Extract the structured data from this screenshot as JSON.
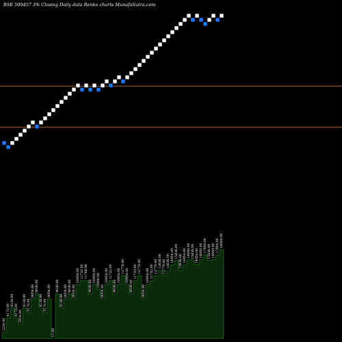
{
  "chart_data": {
    "type": "renko",
    "title": "BSE 500457 3% Closing Daily data Renko charts MunafaSutra.com",
    "bricks": [
      "down",
      "down",
      "up",
      "up",
      "up",
      "up",
      "up",
      "up",
      "down",
      "up",
      "up",
      "up",
      "up",
      "up",
      "up",
      "up",
      "up",
      "up",
      "up",
      "down",
      "up",
      "down",
      "up",
      "down",
      "up",
      "up",
      "down",
      "up",
      "up",
      "down",
      "up",
      "up",
      "up",
      "up",
      "up",
      "up",
      "up",
      "up",
      "up",
      "up",
      "up",
      "up",
      "up",
      "up",
      "up",
      "up",
      "down",
      "up",
      "down",
      "down",
      "up",
      "up",
      "down",
      "up"
    ],
    "colors": {
      "up_brick": "#ffffff",
      "down_brick": "#1e78ff",
      "reference_line": "#b4642a",
      "volume_fill": "#0b2a0b",
      "volume_edge": "#1f6f1f",
      "background": "#000000"
    },
    "reference_lines": [
      "level-1",
      "level-2"
    ],
    "volume_labels": [
      "1234.00",
      "4173.00",
      "6138.00",
      "4173.00",
      "2916.00",
      "6138.00",
      "5178.00",
      "8054.00",
      "9036.00",
      "6138.00",
      "5178.00",
      "8054.00",
      "11.00",
      "9036.00",
      "6138.00",
      "8054.00",
      "9036.00",
      "8054.00",
      "10954.00",
      "11732.00",
      "11768.00",
      "9036.00",
      "10954.00",
      "10000.00",
      "8054.00",
      "10954.00",
      "11732.00",
      "9036.00",
      "10954.00",
      "12776.00",
      "10954.00",
      "9036.00",
      "11732.00",
      "12776.00",
      "8054.00",
      "10954.00",
      "11732.00",
      "12776.00",
      "13836.00",
      "12776.00",
      "13836.00",
      "14954.00",
      "15836.00",
      "13836.00",
      "14954.00",
      "16000.00",
      "15836.00",
      "14954.00",
      "16000.00",
      "17000.00",
      "15836.00",
      "16000.00",
      "17000.00",
      "18000.00"
    ]
  }
}
